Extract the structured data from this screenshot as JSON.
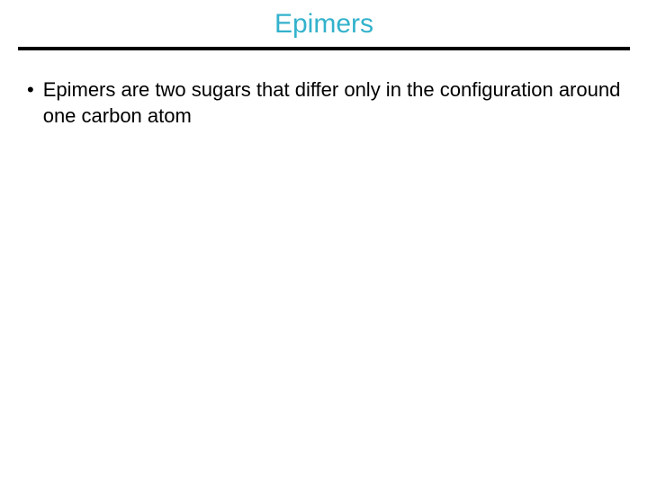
{
  "slide": {
    "title": "Epimers",
    "title_color": "#33b2cc",
    "title_fontsize": 30,
    "underline_color": "#000000",
    "underline_height": 4,
    "underline_width": 680,
    "background_color": "#ffffff",
    "body_fontsize": 22,
    "body_color": "#000000",
    "bullets": [
      {
        "marker": "•",
        "text": "Epimers are two sugars that differ only in the configuration around one carbon atom"
      }
    ]
  }
}
